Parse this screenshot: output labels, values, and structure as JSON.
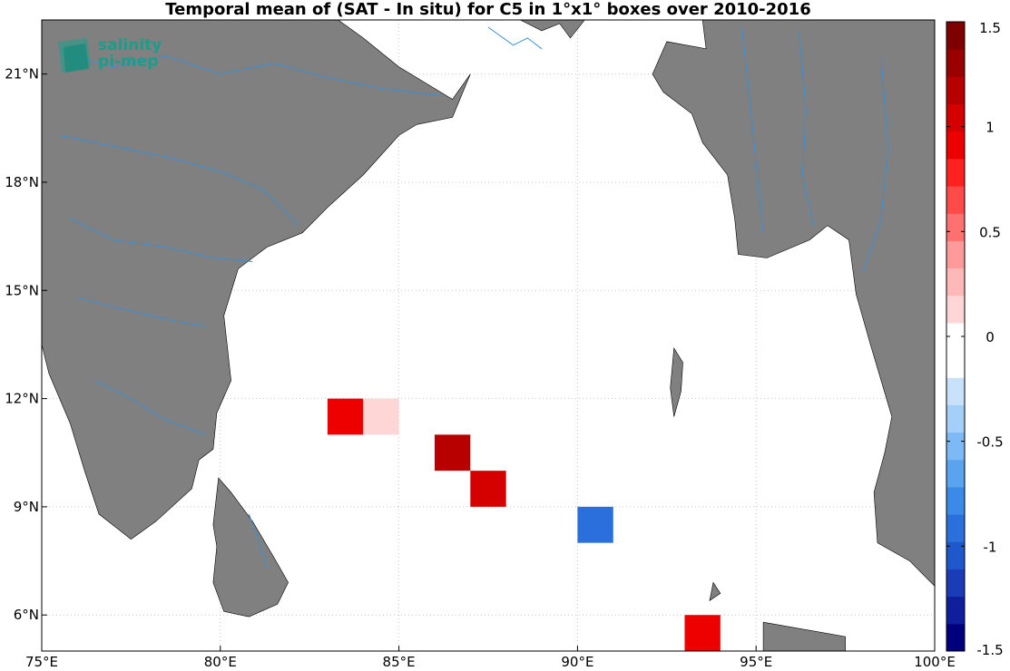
{
  "title": "Temporal mean of (SAT - In situ) for C5 in 1°x1° boxes over 2010-2016",
  "logo": {
    "line1": "salinity",
    "line2": "pi-mep"
  },
  "colors": {
    "land": "#808080",
    "rivers": "#3a8fd6",
    "ocean": "#ffffff",
    "grid": "#c8c8c8"
  },
  "chart_data": {
    "type": "heatmap",
    "title": "Temporal mean of (SAT - In situ) for C5 in 1°x1° boxes over 2010-2016",
    "xlim": [
      75,
      100
    ],
    "ylim": [
      5,
      22.5
    ],
    "x_ticks": [
      75,
      80,
      85,
      90,
      95,
      100
    ],
    "y_ticks": [
      6,
      9,
      12,
      15,
      18,
      21
    ],
    "x_tick_labels": [
      "75°E",
      "80°E",
      "85°E",
      "90°E",
      "95°E",
      "100°E"
    ],
    "y_tick_labels": [
      "6°N",
      "9°N",
      "12°N",
      "15°N",
      "18°N",
      "21°N"
    ],
    "grid": true,
    "colorbar": {
      "range": [
        -1.5,
        1.5
      ],
      "tick_values": [
        1.5,
        1,
        0.5,
        0,
        -0.5,
        -1,
        -1.5
      ],
      "tick_labels": [
        "1.5",
        "1",
        "0.5",
        "0",
        "-0.5",
        "-1",
        "-1.5"
      ],
      "colors": [
        "#00007f",
        "#0f1e9c",
        "#1a3cb8",
        "#1f57cc",
        "#2a6fdc",
        "#3b8ae8",
        "#5aa3ef",
        "#7db9f4",
        "#a3cff8",
        "#c8e2fb",
        "#ffffff",
        "#ffffff",
        "#ffd6d6",
        "#ffb8b8",
        "#ff9a9a",
        "#ff7070",
        "#ff4a4a",
        "#ff2020",
        "#ee0000",
        "#d50000",
        "#b80000",
        "#9a0000",
        "#7f0000"
      ]
    },
    "cells": [
      {
        "lon": 83.5,
        "lat": 11.5,
        "value": 0.9
      },
      {
        "lon": 84.5,
        "lat": 11.5,
        "value": 0.15
      },
      {
        "lon": 86.5,
        "lat": 10.5,
        "value": 1.15
      },
      {
        "lon": 87.5,
        "lat": 9.5,
        "value": 1.1
      },
      {
        "lon": 90.5,
        "lat": 8.5,
        "value": -0.95
      },
      {
        "lon": 93.5,
        "lat": 5.5,
        "value": 0.85
      }
    ],
    "land": {
      "india": [
        [
          75,
          22.5
        ],
        [
          83.3,
          22.5
        ],
        [
          84.5,
          21.6
        ],
        [
          86,
          21.5
        ],
        [
          87,
          21.9
        ],
        [
          88,
          22.2
        ],
        [
          88.3,
          22.5
        ],
        [
          75,
          22.5
        ]
      ],
      "india_coast": [
        [
          75,
          22.5
        ],
        [
          83.3,
          22.5
        ],
        [
          84,
          22
        ],
        [
          85,
          21.2
        ],
        [
          86.5,
          20.3
        ],
        [
          87.0,
          21.0
        ],
        [
          86.5,
          19.8
        ],
        [
          85.5,
          19.6
        ],
        [
          85,
          19.3
        ],
        [
          84,
          18.2
        ],
        [
          83,
          17.3
        ],
        [
          82.3,
          16.6
        ],
        [
          81.3,
          16.2
        ],
        [
          80.5,
          15.6
        ],
        [
          80.1,
          14.3
        ],
        [
          80.2,
          13.4
        ],
        [
          80.3,
          12.5
        ],
        [
          79.9,
          11.6
        ],
        [
          79.8,
          10.6
        ],
        [
          79.4,
          10.3
        ],
        [
          79.2,
          9.5
        ],
        [
          78.2,
          8.6
        ],
        [
          77.5,
          8.1
        ],
        [
          76.6,
          8.8
        ],
        [
          76.2,
          10
        ],
        [
          75.8,
          11.3
        ],
        [
          75.2,
          12.7
        ],
        [
          75,
          13.5
        ],
        [
          75,
          22.5
        ]
      ],
      "sri_lanka": [
        [
          79.95,
          9.8
        ],
        [
          80.3,
          9.4
        ],
        [
          80.9,
          8.6
        ],
        [
          81.5,
          7.6
        ],
        [
          81.9,
          6.9
        ],
        [
          81.6,
          6.3
        ],
        [
          80.8,
          5.95
        ],
        [
          80.1,
          6.1
        ],
        [
          79.8,
          6.9
        ],
        [
          79.9,
          7.9
        ],
        [
          79.8,
          8.5
        ],
        [
          79.95,
          9.8
        ]
      ],
      "east": [
        [
          88.4,
          22.5
        ],
        [
          89.0,
          22.2
        ],
        [
          89.5,
          22.4
        ],
        [
          89.8,
          22.0
        ],
        [
          90.2,
          22.5
        ],
        [
          93.5,
          22.5
        ],
        [
          93.6,
          21.7
        ],
        [
          92.5,
          21.9
        ],
        [
          92.1,
          21.0
        ],
        [
          92.4,
          20.5
        ],
        [
          93.2,
          19.9
        ],
        [
          93.5,
          19.1
        ],
        [
          94.2,
          18.2
        ],
        [
          94.4,
          17.0
        ],
        [
          94.5,
          16.0
        ],
        [
          95.3,
          15.9
        ],
        [
          96.5,
          16.4
        ],
        [
          97.0,
          16.8
        ],
        [
          97.6,
          16.4
        ],
        [
          97.8,
          14.9
        ],
        [
          98.2,
          13.5
        ],
        [
          98.8,
          11.5
        ],
        [
          98.6,
          10.5
        ],
        [
          98.3,
          9.4
        ],
        [
          98.4,
          8.0
        ],
        [
          99.3,
          7.5
        ],
        [
          100,
          6.8
        ],
        [
          100,
          22.5
        ],
        [
          93.5,
          22.5
        ]
      ]
    }
  }
}
